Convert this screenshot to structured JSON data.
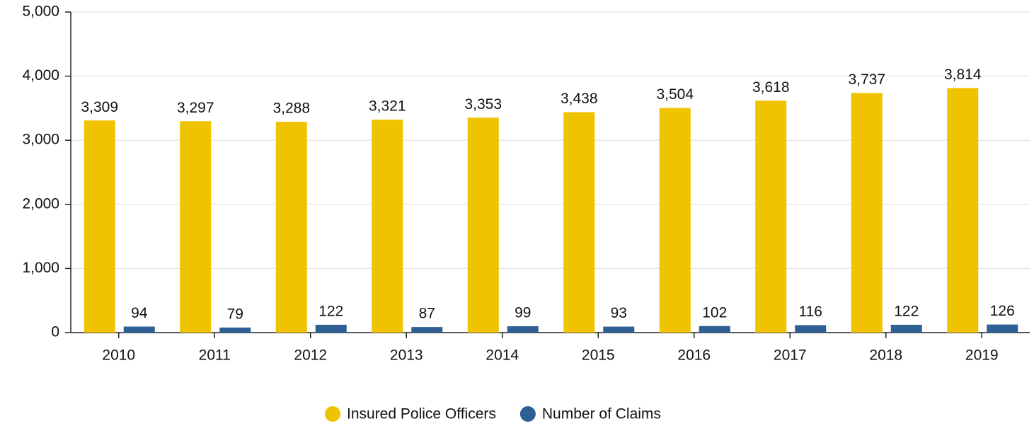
{
  "chart_data": {
    "type": "bar",
    "categories": [
      "2010",
      "2011",
      "2012",
      "2013",
      "2014",
      "2015",
      "2016",
      "2017",
      "2018",
      "2019"
    ],
    "series": [
      {
        "name": "Insured Police Officers",
        "color": "#f0c300",
        "values": [
          3309,
          3297,
          3288,
          3321,
          3353,
          3438,
          3504,
          3618,
          3737,
          3814
        ],
        "value_labels": [
          "3,309",
          "3,297",
          "3,288",
          "3,321",
          "3,353",
          "3,438",
          "3,504",
          "3,618",
          "3,737",
          "3,814"
        ]
      },
      {
        "name": "Number of Claims",
        "color": "#2f5f93",
        "values": [
          94,
          79,
          122,
          87,
          99,
          93,
          102,
          116,
          122,
          126
        ]
      }
    ],
    "ylim": [
      0,
      5000
    ],
    "yticks": [
      0,
      {
        "value": 1000,
        "label": "1,000"
      },
      {
        "value": 2000,
        "label": "2,000"
      },
      {
        "value": 3000,
        "label": "3,000"
      },
      {
        "value": 4000,
        "label": "4,000"
      },
      {
        "value": 5000,
        "label": "5,000"
      }
    ],
    "grid": true,
    "legend": "bottom"
  }
}
